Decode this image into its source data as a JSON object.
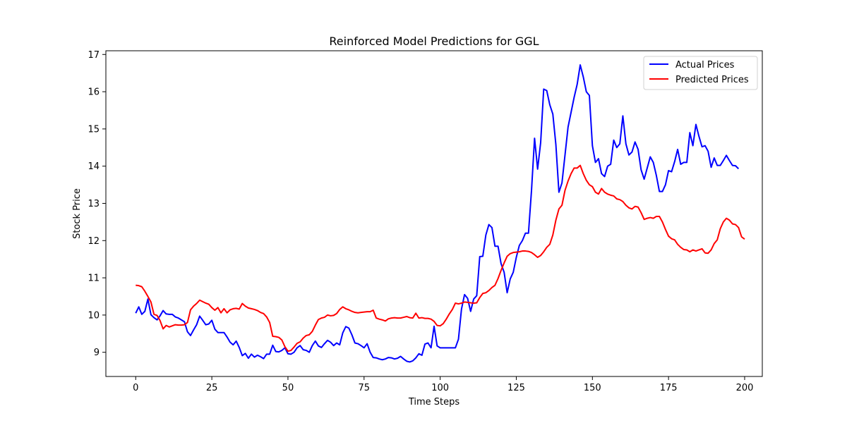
{
  "chart_data": {
    "type": "line",
    "title": "Reinforced Model Predictions for GGL",
    "xlabel": "Time Steps",
    "ylabel": "Stock Price",
    "xlim": [
      -9.8,
      205.8
    ],
    "ylim": [
      8.35,
      17.1
    ],
    "xticks": [
      0,
      25,
      50,
      75,
      100,
      125,
      150,
      175,
      200
    ],
    "yticks": [
      9,
      10,
      11,
      12,
      13,
      14,
      15,
      16,
      17
    ],
    "grid": false,
    "legend": "upper-right",
    "series": [
      {
        "name": "Actual Prices",
        "color": "#0000ff",
        "values": [
          10.05,
          10.22,
          10.02,
          10.1,
          10.43,
          10.01,
          9.93,
          9.87,
          9.98,
          10.12,
          10.03,
          10.02,
          10.02,
          9.95,
          9.92,
          9.87,
          9.82,
          9.55,
          9.45,
          9.6,
          9.74,
          9.97,
          9.86,
          9.74,
          9.76,
          9.86,
          9.62,
          9.53,
          9.53,
          9.53,
          9.41,
          9.27,
          9.2,
          9.3,
          9.13,
          8.91,
          8.97,
          8.84,
          8.95,
          8.87,
          8.92,
          8.88,
          8.83,
          8.95,
          8.95,
          9.19,
          9.02,
          9.01,
          9.05,
          9.12,
          8.96,
          8.95,
          9.0,
          9.12,
          9.18,
          9.07,
          9.05,
          9.0,
          9.18,
          9.3,
          9.17,
          9.13,
          9.23,
          9.32,
          9.27,
          9.18,
          9.25,
          9.2,
          9.52,
          9.69,
          9.65,
          9.47,
          9.25,
          9.23,
          9.18,
          9.12,
          9.23,
          9.0,
          8.86,
          8.85,
          8.82,
          8.8,
          8.82,
          8.86,
          8.85,
          8.82,
          8.84,
          8.89,
          8.82,
          8.76,
          8.74,
          8.77,
          8.85,
          8.96,
          8.92,
          9.22,
          9.25,
          9.12,
          9.7,
          9.17,
          9.12,
          9.12,
          9.12,
          9.12,
          9.12,
          9.12,
          9.35,
          10.16,
          10.55,
          10.45,
          10.1,
          10.43,
          10.52,
          11.57,
          11.58,
          12.15,
          12.43,
          12.35,
          11.85,
          11.85,
          11.38,
          11.15,
          10.6,
          10.97,
          11.15,
          11.55,
          11.87,
          12.0,
          12.2,
          12.2,
          13.35,
          14.75,
          13.92,
          14.63,
          16.07,
          16.03,
          15.65,
          15.4,
          14.58,
          13.3,
          13.55,
          14.3,
          15.05,
          15.45,
          15.85,
          16.2,
          16.72,
          16.4,
          16.0,
          15.9,
          14.55,
          14.1,
          14.2,
          13.8,
          13.72,
          14.0,
          14.05,
          14.7,
          14.5,
          14.6,
          15.35,
          14.6,
          14.3,
          14.38,
          14.65,
          14.45,
          13.9,
          13.65,
          13.95,
          14.25,
          14.1,
          13.75,
          13.32,
          13.32,
          13.5,
          13.88,
          13.85,
          14.12,
          14.45,
          14.05,
          14.1,
          14.1,
          14.9,
          14.55,
          15.12,
          14.8,
          14.52,
          14.55,
          14.4,
          13.97,
          14.22,
          14.02,
          14.02,
          14.15,
          14.29,
          14.15,
          14.02,
          14.01,
          13.93
        ]
      },
      {
        "name": "Predicted Prices",
        "color": "#ff0000",
        "values": [
          10.8,
          10.79,
          10.76,
          10.64,
          10.5,
          10.35,
          10.02,
          9.99,
          9.85,
          9.63,
          9.72,
          9.68,
          9.71,
          9.74,
          9.73,
          9.73,
          9.74,
          9.8,
          10.14,
          10.24,
          10.31,
          10.4,
          10.36,
          10.32,
          10.29,
          10.2,
          10.13,
          10.2,
          10.06,
          10.17,
          10.06,
          10.14,
          10.17,
          10.18,
          10.16,
          10.31,
          10.24,
          10.19,
          10.17,
          10.15,
          10.12,
          10.07,
          10.04,
          9.95,
          9.8,
          9.43,
          9.42,
          9.4,
          9.33,
          9.15,
          9.03,
          9.05,
          9.14,
          9.24,
          9.28,
          9.38,
          9.45,
          9.47,
          9.56,
          9.73,
          9.88,
          9.92,
          9.94,
          10.0,
          9.98,
          9.99,
          10.04,
          10.15,
          10.22,
          10.17,
          10.14,
          10.1,
          10.07,
          10.06,
          10.07,
          10.08,
          10.09,
          10.09,
          10.13,
          9.92,
          9.89,
          9.87,
          9.84,
          9.9,
          9.92,
          9.93,
          9.92,
          9.92,
          9.94,
          9.96,
          9.93,
          9.92,
          10.05,
          9.92,
          9.93,
          9.91,
          9.91,
          9.89,
          9.83,
          9.72,
          9.71,
          9.77,
          9.89,
          10.03,
          10.15,
          10.32,
          10.3,
          10.32,
          10.35,
          10.34,
          10.33,
          10.32,
          10.33,
          10.47,
          10.58,
          10.6,
          10.66,
          10.74,
          10.8,
          10.98,
          11.2,
          11.4,
          11.58,
          11.65,
          11.68,
          11.69,
          11.7,
          11.72,
          11.72,
          11.71,
          11.68,
          11.62,
          11.55,
          11.6,
          11.7,
          11.82,
          11.9,
          12.15,
          12.55,
          12.85,
          12.95,
          13.35,
          13.6,
          13.8,
          13.95,
          13.95,
          14.02,
          13.8,
          13.62,
          13.5,
          13.45,
          13.3,
          13.25,
          13.4,
          13.3,
          13.25,
          13.22,
          13.2,
          13.12,
          13.1,
          13.05,
          12.95,
          12.88,
          12.85,
          12.92,
          12.9,
          12.75,
          12.57,
          12.6,
          12.62,
          12.6,
          12.65,
          12.65,
          12.5,
          12.3,
          12.12,
          12.05,
          12.02,
          11.9,
          11.82,
          11.76,
          11.75,
          11.7,
          11.75,
          11.72,
          11.75,
          11.78,
          11.67,
          11.66,
          11.75,
          11.92,
          12.02,
          12.32,
          12.5,
          12.6,
          12.55,
          12.45,
          12.43,
          12.35,
          12.1,
          12.04
        ]
      }
    ]
  }
}
